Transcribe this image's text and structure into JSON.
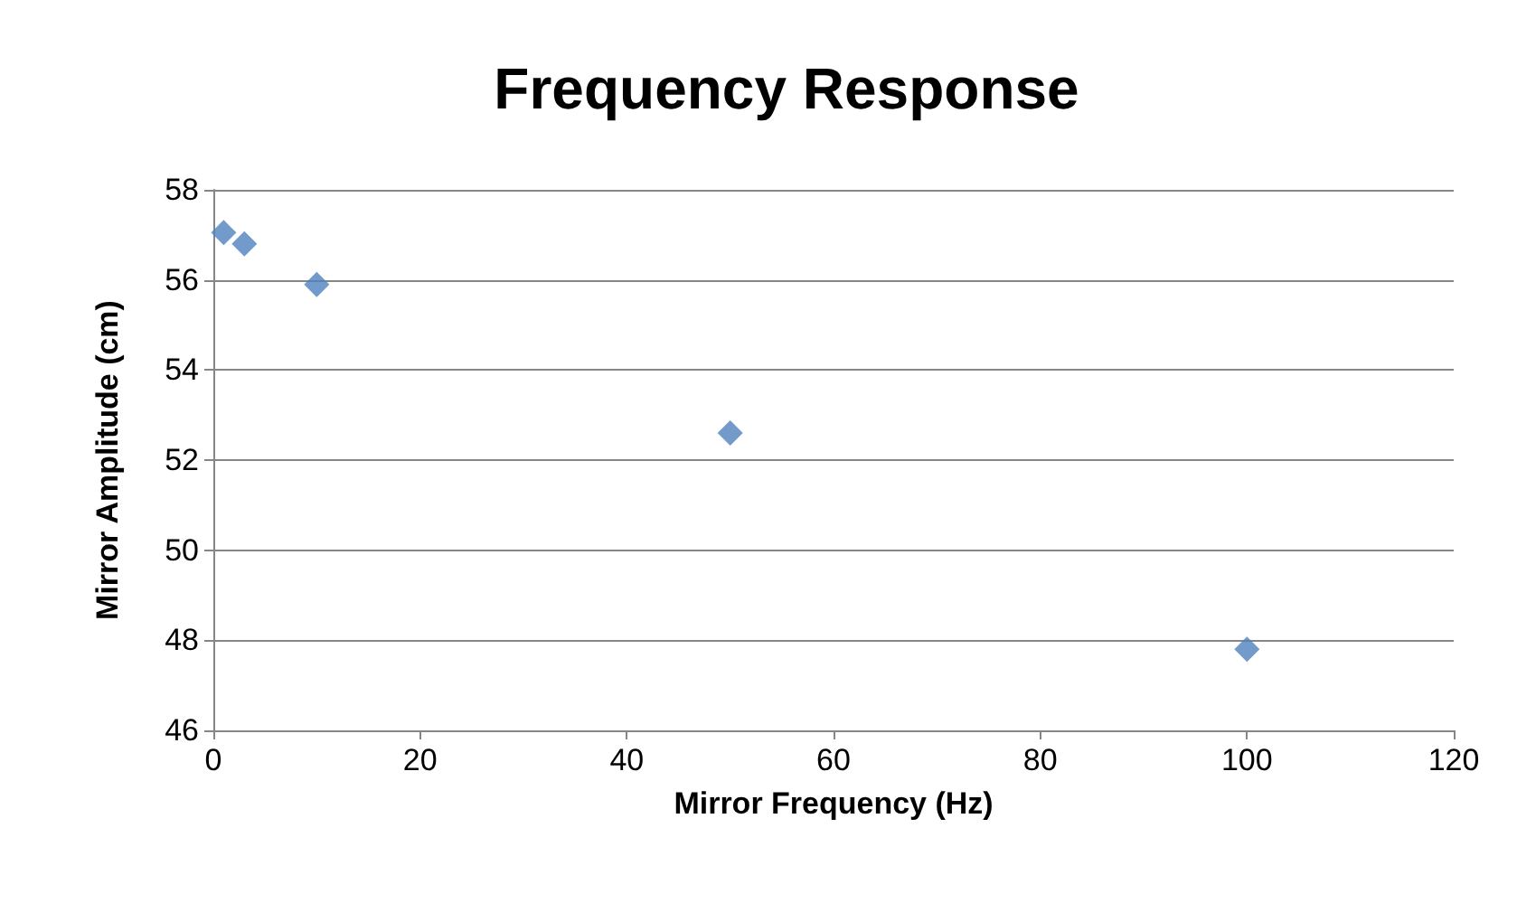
{
  "chart_data": {
    "type": "scatter",
    "title": "Frequency Response",
    "xlabel": "Mirror Frequency (Hz)",
    "ylabel": "Mirror Amplitude (cm)",
    "x": [
      1,
      3,
      10,
      50,
      100
    ],
    "series": [
      {
        "color": "#4f81bd",
        "values": [
          57.05,
          56.8,
          55.9,
          52.6,
          47.8
        ]
      }
    ],
    "xlim": [
      0,
      120
    ],
    "xticks": [
      0,
      20,
      40,
      60,
      80,
      100,
      120
    ],
    "ylim": [
      46,
      58
    ],
    "yticks": [
      46,
      48,
      50,
      52,
      54,
      56,
      58
    ],
    "grid": "y",
    "marker": "diamond"
  }
}
